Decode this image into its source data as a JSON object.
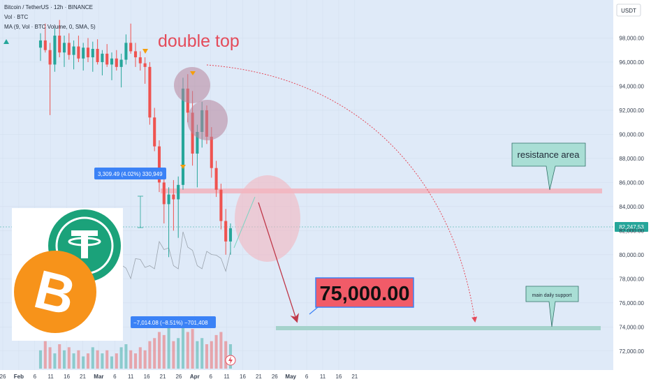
{
  "header": {
    "title": "Bitcoin / TetherUS · 12h · BINANCE",
    "vol": "Vol · BTC",
    "ma": "MA (9, Vol · BTC Volume, 0, SMA, 5)"
  },
  "currency_label": "USDT",
  "last_price_label": "82,247.53",
  "annotations": {
    "double_top": "double top",
    "target": "75,000.00",
    "resistance": "resistance area",
    "support": "main daily support",
    "measure_up": "3,309.49 (4.02%) 330,949",
    "measure_down": "−7,014.08 (−8.51%) −701,408"
  },
  "colors": {
    "background": "#dfeaf8",
    "up": "#26a69a",
    "down": "#ef5350",
    "accent": "#e44b5a",
    "resistance_band": "#f2b3bd",
    "support_band": "#9fd0c6",
    "price_tag": "#26a69a",
    "target_box": "#f15b68"
  },
  "icons": [
    "bitcoin-logo",
    "tether-logo",
    "lightning-icon",
    "triangle-marker-icon"
  ],
  "chart_data": {
    "type": "candlestick",
    "y_ticks": [
      "98,000.00",
      "96,000.00",
      "94,000.00",
      "92,000.00",
      "90,000.00",
      "88,000.00",
      "86,000.00",
      "84,000.00",
      "82,000.00",
      "80,000.00",
      "78,000.00",
      "76,000.00",
      "74,000.00",
      "72,000.00"
    ],
    "x_ticks": [
      "26",
      "Feb",
      "6",
      "11",
      "16",
      "21",
      "Mar",
      "6",
      "11",
      "16",
      "21",
      "26",
      "Apr",
      "6",
      "11",
      "16",
      "21",
      "26",
      "May",
      "6",
      "11",
      "16",
      "21"
    ],
    "ylim": [
      71000,
      100000
    ],
    "last_price": 82247.53,
    "resistance_level": 85300,
    "support_level": 73900,
    "target_level": 75000,
    "candles": [
      {
        "o": 97200,
        "h": 98400,
        "l": 96100,
        "c": 97800
      },
      {
        "o": 97800,
        "h": 99200,
        "l": 96800,
        "c": 97000
      },
      {
        "o": 97000,
        "h": 97600,
        "l": 91600,
        "c": 95800
      },
      {
        "o": 95800,
        "h": 98800,
        "l": 95200,
        "c": 98200
      },
      {
        "o": 98200,
        "h": 99500,
        "l": 96400,
        "c": 96800
      },
      {
        "o": 96800,
        "h": 98200,
        "l": 95600,
        "c": 97600
      },
      {
        "o": 97600,
        "h": 98400,
        "l": 96200,
        "c": 96600
      },
      {
        "o": 96600,
        "h": 97800,
        "l": 95400,
        "c": 97300
      },
      {
        "o": 97300,
        "h": 98200,
        "l": 96000,
        "c": 96300
      },
      {
        "o": 96300,
        "h": 97600,
        "l": 95300,
        "c": 97200
      },
      {
        "o": 97200,
        "h": 98000,
        "l": 96000,
        "c": 96400
      },
      {
        "o": 96400,
        "h": 97700,
        "l": 95200,
        "c": 97100
      },
      {
        "o": 97100,
        "h": 97900,
        "l": 95800,
        "c": 96000
      },
      {
        "o": 96000,
        "h": 97000,
        "l": 94900,
        "c": 96700
      },
      {
        "o": 96700,
        "h": 97500,
        "l": 95600,
        "c": 95800
      },
      {
        "o": 95800,
        "h": 96800,
        "l": 94500,
        "c": 96300
      },
      {
        "o": 96300,
        "h": 97000,
        "l": 95300,
        "c": 95600
      },
      {
        "o": 95600,
        "h": 96700,
        "l": 93900,
        "c": 96200
      },
      {
        "o": 96200,
        "h": 98300,
        "l": 95800,
        "c": 97600
      },
      {
        "o": 97600,
        "h": 99200,
        "l": 96700,
        "c": 96900
      },
      {
        "o": 96900,
        "h": 97600,
        "l": 95600,
        "c": 96400
      },
      {
        "o": 96400,
        "h": 96900,
        "l": 95300,
        "c": 95900
      },
      {
        "o": 95900,
        "h": 96400,
        "l": 94200,
        "c": 95600
      },
      {
        "o": 95600,
        "h": 96000,
        "l": 90800,
        "c": 91400
      },
      {
        "o": 91400,
        "h": 92200,
        "l": 88600,
        "c": 89000
      },
      {
        "o": 89000,
        "h": 89500,
        "l": 85200,
        "c": 86000
      },
      {
        "o": 86000,
        "h": 86700,
        "l": 82600,
        "c": 84200
      },
      {
        "o": 84200,
        "h": 85600,
        "l": 79800,
        "c": 85000
      },
      {
        "o": 85000,
        "h": 86200,
        "l": 82000,
        "c": 84600
      },
      {
        "o": 84600,
        "h": 86500,
        "l": 81400,
        "c": 85800
      },
      {
        "o": 85800,
        "h": 94700,
        "l": 85400,
        "c": 93800
      },
      {
        "o": 93800,
        "h": 95000,
        "l": 91000,
        "c": 91800
      },
      {
        "o": 91800,
        "h": 93600,
        "l": 87400,
        "c": 88400
      },
      {
        "o": 88400,
        "h": 90800,
        "l": 85600,
        "c": 90200
      },
      {
        "o": 90200,
        "h": 92700,
        "l": 88900,
        "c": 92000
      },
      {
        "o": 92000,
        "h": 92400,
        "l": 89200,
        "c": 89800
      },
      {
        "o": 89800,
        "h": 90600,
        "l": 86400,
        "c": 87200
      },
      {
        "o": 87200,
        "h": 87800,
        "l": 84800,
        "c": 85400
      },
      {
        "o": 85400,
        "h": 85900,
        "l": 82100,
        "c": 82800
      },
      {
        "o": 82800,
        "h": 83800,
        "l": 80000,
        "c": 81100
      },
      {
        "o": 81100,
        "h": 82600,
        "l": 80000,
        "c": 82200
      }
    ],
    "volume": [
      6,
      9,
      7,
      5,
      8,
      6,
      7,
      5,
      6,
      4,
      5,
      7,
      6,
      5,
      6,
      4,
      5,
      7,
      8,
      6,
      5,
      7,
      6,
      9,
      10,
      12,
      11,
      14,
      9,
      10,
      16,
      12,
      13,
      9,
      10,
      8,
      9,
      11,
      12,
      9,
      8
    ]
  }
}
